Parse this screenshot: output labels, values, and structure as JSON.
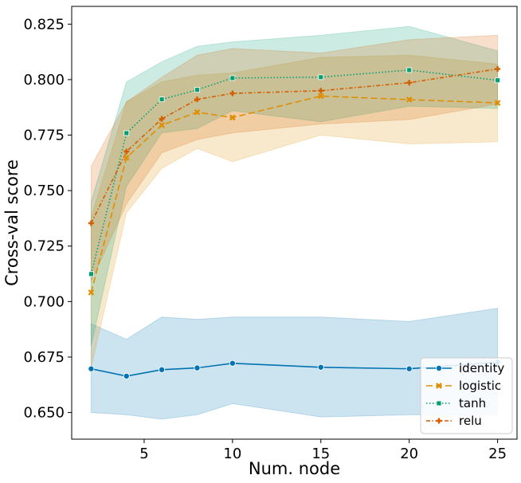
{
  "chart_data": {
    "type": "line",
    "title": "",
    "xlabel": "Num. node",
    "ylabel": "Cross-val score",
    "xlim": [
      0.9,
      26.1
    ],
    "ylim": [
      0.638,
      0.833
    ],
    "x_ticks": [
      5,
      10,
      15,
      20,
      25
    ],
    "x_tick_labels": [
      "5",
      "10",
      "15",
      "20",
      "25"
    ],
    "y_ticks": [
      0.65,
      0.675,
      0.7,
      0.725,
      0.75,
      0.775,
      0.8,
      0.825
    ],
    "y_tick_labels": [
      "0.650",
      "0.675",
      "0.700",
      "0.725",
      "0.750",
      "0.775",
      "0.800",
      "0.825"
    ],
    "grid": false,
    "legend_position": "lower-right",
    "x": [
      2,
      4,
      6,
      8,
      10,
      15,
      20,
      25
    ],
    "series": [
      {
        "name": "identity",
        "color": "#0173b2",
        "marker": "circle",
        "dash": "solid",
        "values": [
          0.6697,
          0.6664,
          0.6693,
          0.6701,
          0.6722,
          0.6704,
          0.6697,
          0.6727
        ],
        "lower": [
          0.65,
          0.649,
          0.647,
          0.649,
          0.654,
          0.648,
          0.649,
          0.649
        ],
        "upper": [
          0.69,
          0.683,
          0.693,
          0.692,
          0.693,
          0.693,
          0.691,
          0.697
        ]
      },
      {
        "name": "logistic",
        "color": "#de8f05",
        "marker": "x",
        "dash": "dashed",
        "values": [
          0.7041,
          0.7648,
          0.7795,
          0.7853,
          0.7829,
          0.7926,
          0.791,
          0.7895
        ],
        "lower": [
          0.67,
          0.74,
          0.76,
          0.769,
          0.763,
          0.775,
          0.771,
          0.772
        ],
        "upper": [
          0.738,
          0.79,
          0.799,
          0.802,
          0.803,
          0.81,
          0.811,
          0.807
        ]
      },
      {
        "name": "tanh",
        "color": "#029e73",
        "marker": "square",
        "dash": "dotted",
        "values": [
          0.7124,
          0.7759,
          0.7911,
          0.7954,
          0.8007,
          0.8011,
          0.8043,
          0.7997
        ],
        "lower": [
          0.68,
          0.752,
          0.776,
          0.778,
          0.786,
          0.781,
          0.788,
          0.787
        ],
        "upper": [
          0.745,
          0.799,
          0.808,
          0.815,
          0.817,
          0.82,
          0.824,
          0.813
        ]
      },
      {
        "name": "relu",
        "color": "#d55e00",
        "marker": "plus",
        "dash": "dashdot",
        "values": [
          0.7353,
          0.7676,
          0.7823,
          0.7911,
          0.7938,
          0.795,
          0.7986,
          0.8048
        ],
        "lower": [
          0.709,
          0.744,
          0.767,
          0.773,
          0.776,
          0.78,
          0.782,
          0.789
        ],
        "upper": [
          0.761,
          0.79,
          0.801,
          0.811,
          0.814,
          0.812,
          0.818,
          0.82
        ]
      }
    ]
  }
}
